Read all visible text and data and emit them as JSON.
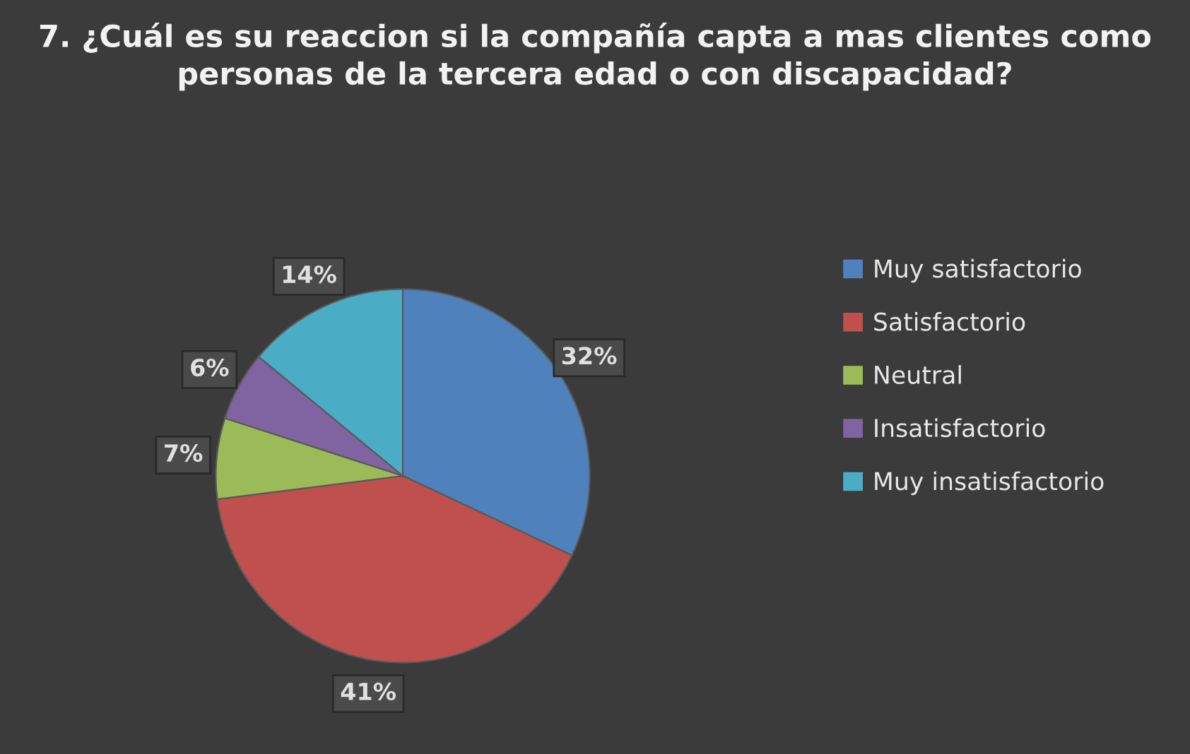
{
  "chart_data": {
    "type": "pie",
    "title": "7. ¿Cuál es su reaccion si la compañía capta a mas clientes como personas de la tercera edad o con discapacidad?",
    "categories": [
      "Muy satisfactorio",
      "Satisfactorio",
      "Neutral",
      "Insatisfactorio",
      "Muy insatisfactorio"
    ],
    "values": [
      32,
      41,
      7,
      6,
      14
    ],
    "colors": [
      "#4f81bd",
      "#c0504d",
      "#9bbb59",
      "#8064a2",
      "#4bacc6"
    ],
    "value_labels": [
      "32%",
      "41%",
      "7%",
      "6%",
      "14%"
    ],
    "legend": "right"
  }
}
